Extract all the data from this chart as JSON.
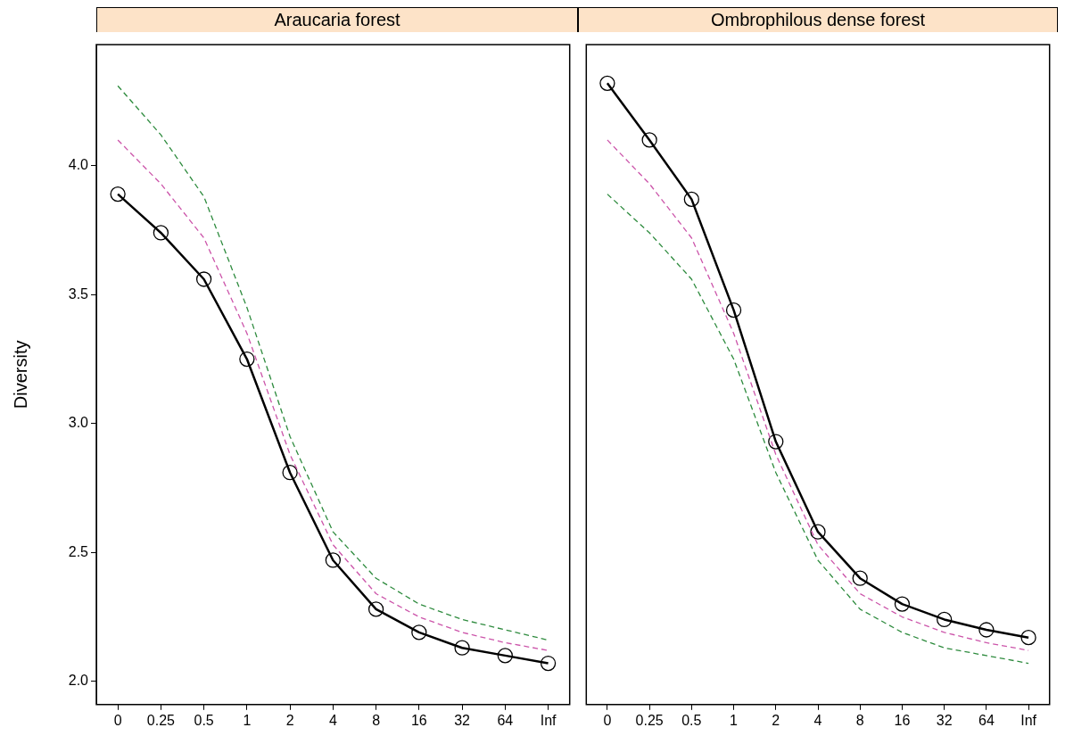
{
  "chart_data": [
    {
      "type": "line",
      "title": "Araucaria forest",
      "ylabel": "Diversity",
      "categories": [
        "0",
        "0.25",
        "0.5",
        "1",
        "2",
        "4",
        "8",
        "16",
        "32",
        "64",
        "Inf"
      ],
      "ylim": [
        1.91,
        4.47
      ],
      "yticks": [
        {
          "value": 2,
          "label": "2.0"
        },
        2.5,
        {
          "value": 3,
          "label": "3.0"
        },
        3.5,
        {
          "value": 4,
          "label": "4.0"
        }
      ],
      "grid": false,
      "legend": false,
      "series": [
        {
          "color": "#2e8b3e",
          "line_style": "dashed",
          "marker": "none",
          "values": [
            4.31,
            4.12,
            3.88,
            3.45,
            2.95,
            2.58,
            2.4,
            2.3,
            2.24,
            2.2,
            2.16
          ]
        },
        {
          "color": "#cc55aa",
          "line_style": "dashed",
          "marker": "none",
          "values": [
            4.1,
            3.93,
            3.72,
            3.35,
            2.88,
            2.53,
            2.34,
            2.25,
            2.19,
            2.15,
            2.12
          ]
        },
        {
          "color": "#000000",
          "line_style": "solid",
          "marker": "circle",
          "values": [
            3.89,
            3.74,
            3.56,
            3.25,
            2.81,
            2.47,
            2.28,
            2.19,
            2.13,
            2.1,
            2.07
          ]
        }
      ]
    },
    {
      "type": "line",
      "title": "Ombrophilous dense forest",
      "categories": [
        "0",
        "0.25",
        "0.5",
        "1",
        "2",
        "4",
        "8",
        "16",
        "32",
        "64",
        "Inf"
      ],
      "ylim": [
        1.91,
        4.47
      ],
      "tick_labels": "x",
      "grid": false,
      "legend": false,
      "series": [
        {
          "color": "#2e8b3e",
          "line_style": "dashed",
          "marker": "none",
          "values": [
            3.89,
            3.74,
            3.56,
            3.25,
            2.81,
            2.47,
            2.28,
            2.19,
            2.13,
            2.1,
            2.07
          ]
        },
        {
          "color": "#cc55aa",
          "line_style": "dashed",
          "marker": "none",
          "values": [
            4.1,
            3.93,
            3.72,
            3.35,
            2.88,
            2.53,
            2.34,
            2.25,
            2.19,
            2.15,
            2.12
          ]
        },
        {
          "color": "#000000",
          "line_style": "solid",
          "marker": "circle",
          "values": [
            4.32,
            4.1,
            3.87,
            3.44,
            2.93,
            2.58,
            2.4,
            2.3,
            2.24,
            2.2,
            2.17
          ]
        }
      ]
    }
  ]
}
